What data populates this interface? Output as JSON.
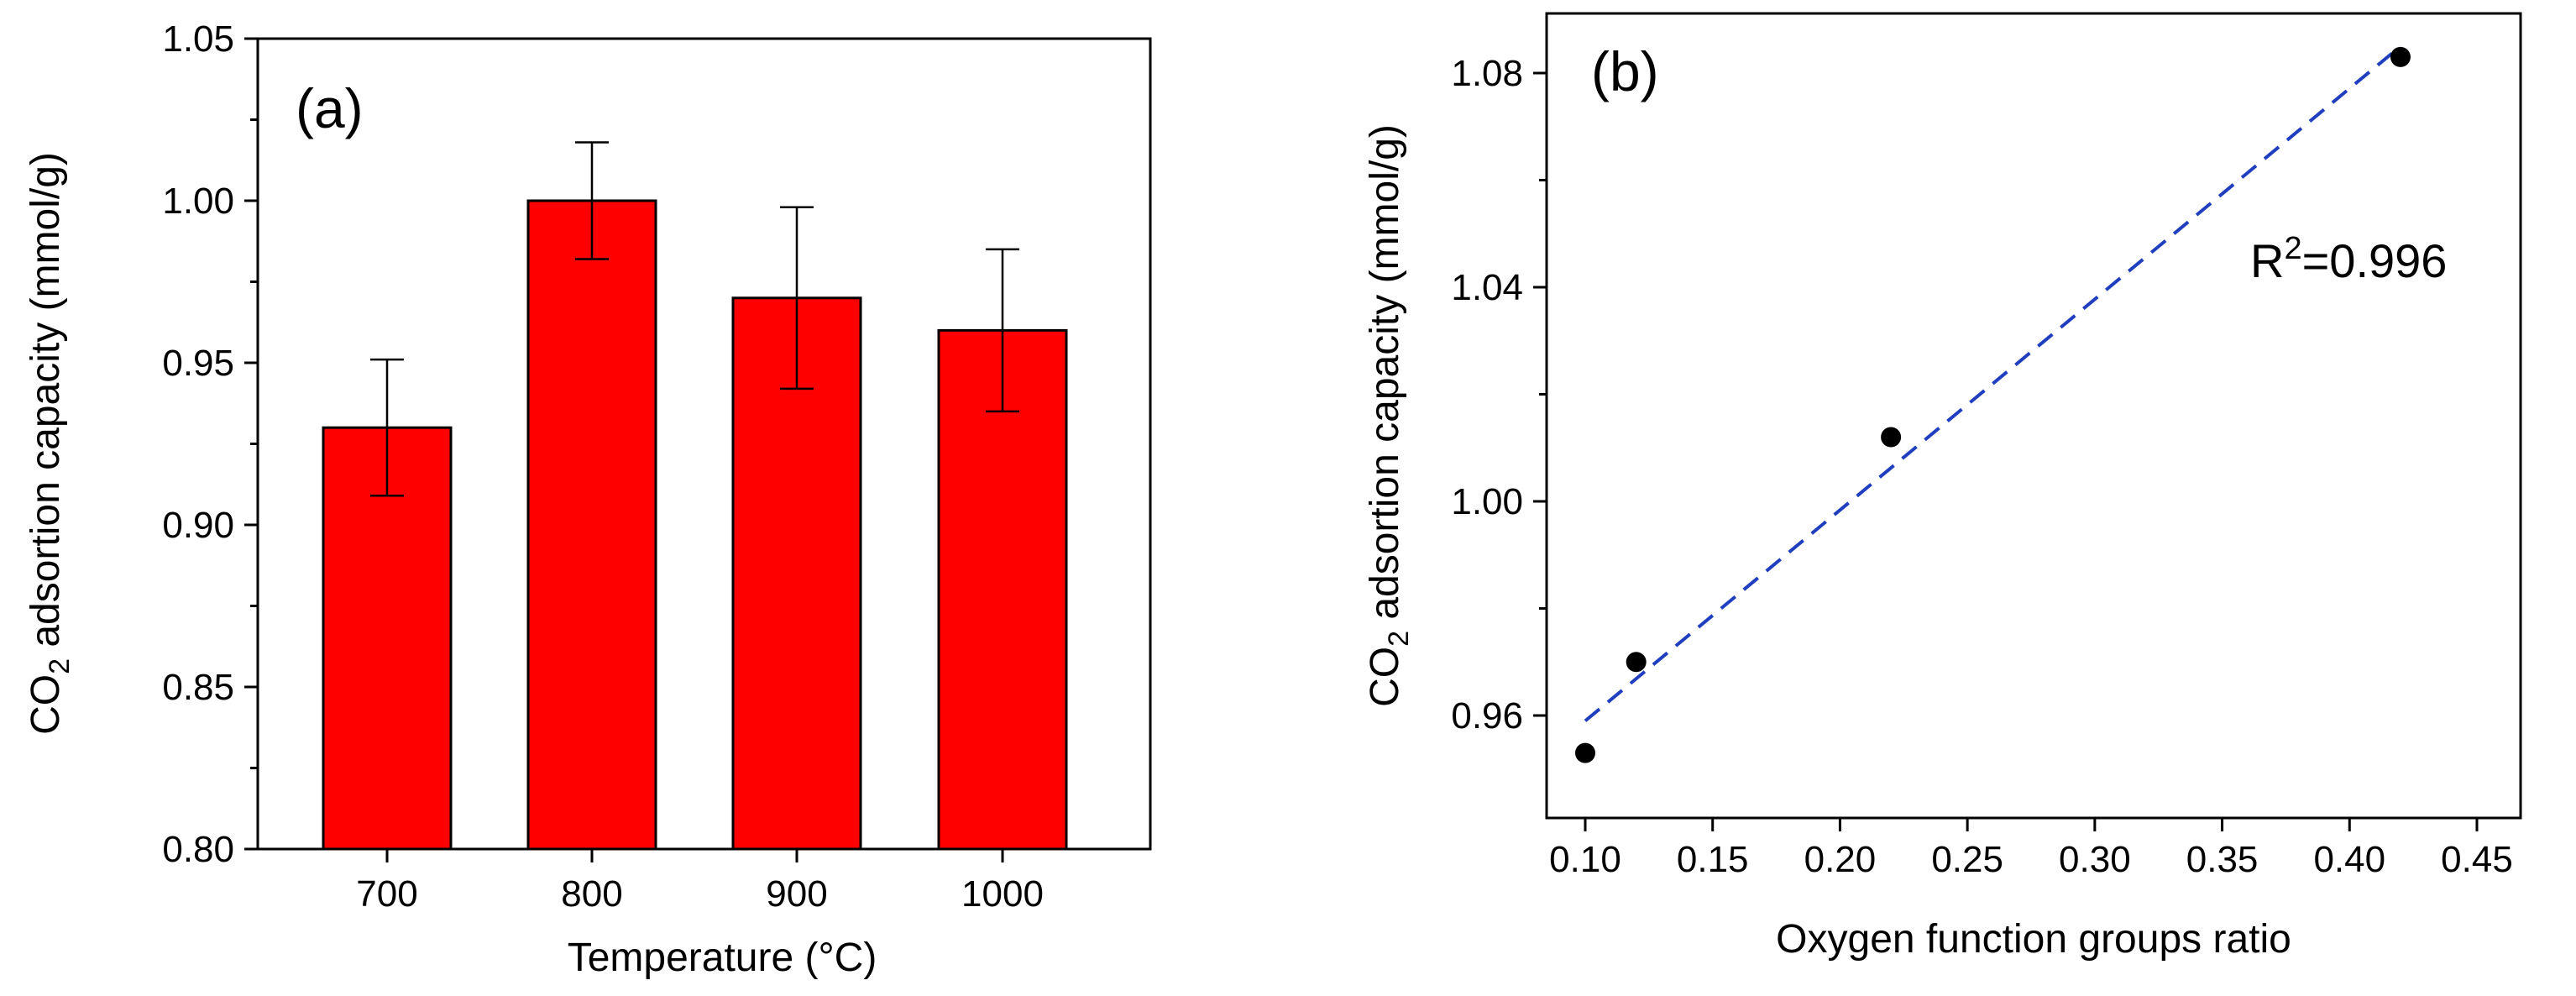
{
  "chart_data": [
    {
      "panel_label": "(a)",
      "type": "bar",
      "xlabel": "Temperature (°C)",
      "ylabel_prefix": "CO",
      "ylabel_subscript": "2",
      "ylabel_suffix": " adsortion capacity (mmol/g)",
      "categories": [
        "700",
        "800",
        "900",
        "1000"
      ],
      "values": [
        0.93,
        1.0,
        0.97,
        0.96
      ],
      "errors": [
        0.021,
        0.018,
        0.028,
        0.025
      ],
      "ylim": [
        0.8,
        1.05
      ],
      "yticks": [
        "0.80",
        "0.85",
        "0.90",
        "0.95",
        "1.00",
        "1.05"
      ],
      "bar_color": "#ff0000",
      "bar_edge_color": "#000000",
      "grid": false
    },
    {
      "panel_label": "(b)",
      "type": "scatter",
      "xlabel": "Oxygen function groups ratio",
      "ylabel_prefix": "CO",
      "ylabel_subscript": "2",
      "ylabel_suffix": " adsortion capacity (mmol/g)",
      "points": [
        {
          "x": 0.1,
          "y": 0.953
        },
        {
          "x": 0.12,
          "y": 0.97
        },
        {
          "x": 0.22,
          "y": 1.012
        },
        {
          "x": 0.42,
          "y": 1.083
        }
      ],
      "fit_line": {
        "x": [
          0.1,
          0.42
        ],
        "y": [
          0.959,
          1.085
        ],
        "style": "dashed",
        "color": "#1f3fbf"
      },
      "annotation": {
        "prefix": "R",
        "superscript": "2",
        "suffix": "=0.996"
      },
      "xlim": [
        0.08,
        0.45
      ],
      "ylim": [
        0.935,
        1.09
      ],
      "xticks": [
        "0.10",
        "0.15",
        "0.20",
        "0.25",
        "0.30",
        "0.35",
        "0.40",
        "0.45"
      ],
      "yticks": [
        "0.96",
        "1.00",
        "1.04",
        "1.08"
      ],
      "marker_color": "#000000",
      "grid": false
    }
  ]
}
